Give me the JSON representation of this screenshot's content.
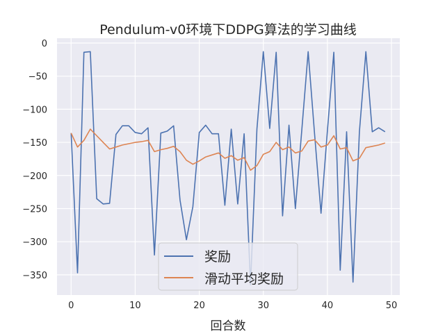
{
  "chart_data": {
    "type": "line",
    "title": "Pendulum-v0环境下DDPG算法的学习曲线",
    "xlabel": "回合数",
    "ylabel": "",
    "xlim": [
      -2.2,
      51.3
    ],
    "ylim": [
      -380.5,
      7.3
    ],
    "xticks": [
      0,
      10,
      20,
      30,
      40,
      50
    ],
    "yticks": [
      0,
      -50,
      -100,
      -150,
      -200,
      -250,
      -300,
      -350
    ],
    "xtick_labels": [
      "0",
      "10",
      "20",
      "30",
      "40",
      "50"
    ],
    "ytick_labels": [
      "0",
      "−50",
      "−100",
      "−150",
      "−200",
      "−250",
      "−300",
      "−350"
    ],
    "grid": true,
    "legend_position": "lower-center",
    "x": [
      0,
      1,
      2,
      3,
      4,
      5,
      6,
      7,
      8,
      9,
      10,
      11,
      12,
      13,
      14,
      15,
      16,
      17,
      18,
      19,
      20,
      21,
      22,
      23,
      24,
      25,
      26,
      27,
      28,
      29,
      30,
      31,
      32,
      33,
      34,
      35,
      36,
      37,
      38,
      39,
      40,
      41,
      42,
      43,
      44,
      45,
      46,
      47,
      48,
      49
    ],
    "series": [
      {
        "name": "奖励",
        "color": "#4c72b0",
        "values": [
          -136,
          -347,
          -14,
          -13,
          -235,
          -243,
          -242,
          -138,
          -125,
          -125,
          -135,
          -137,
          -128,
          -320,
          -136,
          -133,
          -125,
          -237,
          -297,
          -247,
          -135,
          -124,
          -137,
          -137,
          -245,
          -130,
          -243,
          -137,
          -365,
          -130,
          -13,
          -129,
          -14,
          -261,
          -124,
          -250,
          -132,
          -13,
          -137,
          -257,
          -132,
          -14,
          -343,
          -134,
          -361,
          -134,
          -13,
          -134,
          -128,
          -134
        ]
      },
      {
        "name": "滑动平均奖励",
        "color": "#dd8452",
        "values": [
          -136,
          -157,
          -147,
          -130,
          -140,
          -150,
          -160,
          -157,
          -154,
          -152,
          -150,
          -149,
          -147,
          -164,
          -161,
          -159,
          -156,
          -164,
          -177,
          -183,
          -178,
          -172,
          -169,
          -166,
          -174,
          -170,
          -177,
          -173,
          -192,
          -185,
          -168,
          -164,
          -150,
          -161,
          -157,
          -166,
          -163,
          -148,
          -146,
          -157,
          -154,
          -140,
          -160,
          -158,
          -178,
          -174,
          -158,
          -156,
          -154,
          -151
        ]
      }
    ]
  }
}
